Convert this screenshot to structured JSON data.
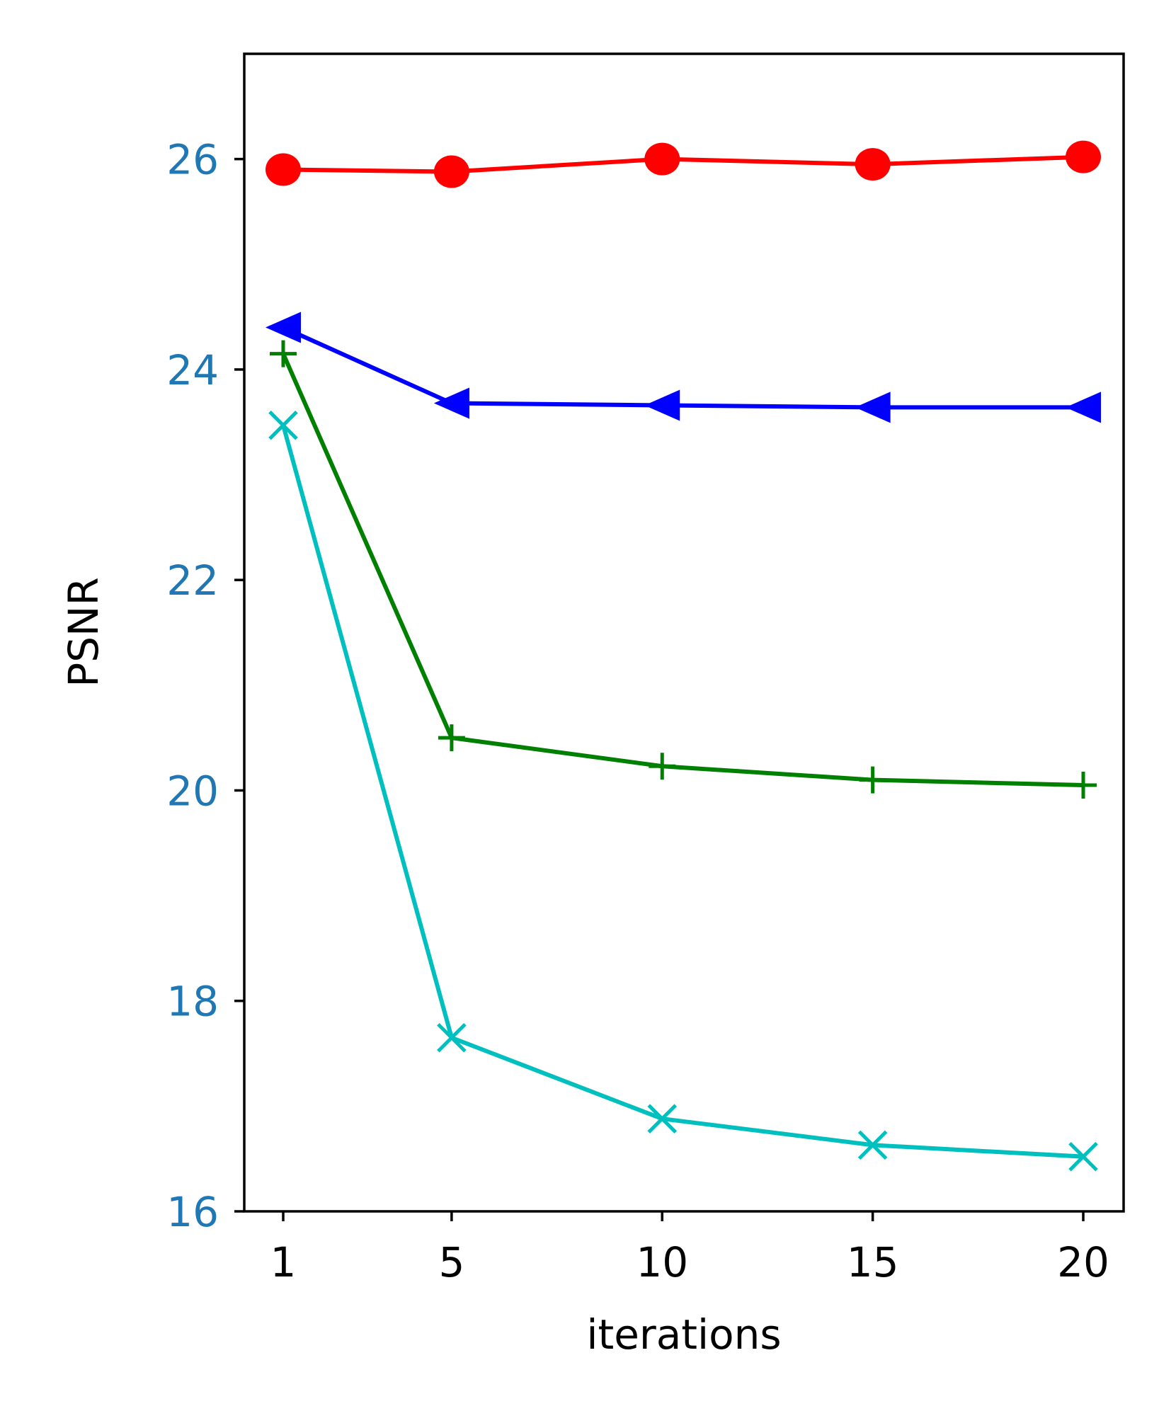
{
  "chart_data": {
    "type": "line",
    "xlabel": "iterations",
    "ylabel": "PSNR",
    "x": [
      1,
      5,
      10,
      15,
      20
    ],
    "x_ticks": [
      "1",
      "5",
      "10",
      "15",
      "20"
    ],
    "y_ticks": [
      "16",
      "18",
      "20",
      "22",
      "24",
      "26"
    ],
    "ylim": [
      16,
      27
    ],
    "xlim": [
      0,
      21
    ],
    "grid": false,
    "legend": "none",
    "ytick_color": "#1f77b4",
    "series": [
      {
        "color": "#ff0000",
        "marker": "circle",
        "values": [
          25.9,
          25.88,
          26.0,
          25.95,
          26.02
        ]
      },
      {
        "color": "#0000ff",
        "marker": "triangle-left",
        "values": [
          24.4,
          23.68,
          23.66,
          23.64,
          23.64
        ]
      },
      {
        "color": "#008000",
        "marker": "plus",
        "values": [
          24.15,
          20.5,
          20.23,
          20.1,
          20.05
        ]
      },
      {
        "color": "#00bfbf",
        "marker": "x",
        "values": [
          23.47,
          17.65,
          16.88,
          16.63,
          16.52
        ]
      }
    ]
  }
}
